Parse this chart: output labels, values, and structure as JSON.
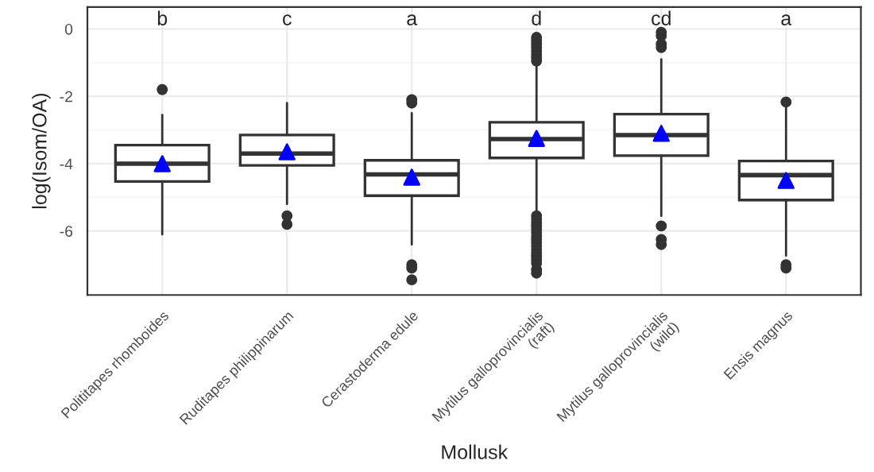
{
  "chart_data": {
    "type": "box",
    "xlabel": "Mollusk",
    "ylabel": "log(Isom/OA)",
    "categories": [
      "Polititapes rhomboides",
      "Ruditapes philippinarum",
      "Cerastoderma edule",
      "Mytilus galloprovincialis\n(raft)",
      "Mytilus galloprovincialis\n(wild)",
      "Ensis magnus"
    ],
    "boxes": [
      {
        "low": -6.1,
        "q1": -4.53,
        "median": -4.0,
        "q3": -3.45,
        "high": -2.55,
        "outliers": [
          -1.8
        ]
      },
      {
        "low": -5.2,
        "q1": -4.05,
        "median": -3.7,
        "q3": -3.15,
        "high": -2.2,
        "outliers": [
          -5.55,
          -5.8
        ]
      },
      {
        "low": -6.4,
        "q1": -4.95,
        "median": -4.32,
        "q3": -3.9,
        "high": -2.5,
        "outliers": [
          -2.1,
          -2.2,
          -7.0,
          -7.1,
          -7.45
        ]
      },
      {
        "low": -5.47,
        "q1": -3.83,
        "median": -3.27,
        "q3": -2.77,
        "high": -1.0,
        "outliers": [
          -0.25,
          -0.35,
          -0.45,
          -0.55,
          -0.65,
          -0.75,
          -0.85,
          -0.95,
          -5.55,
          -5.65,
          -5.75,
          -5.85,
          -5.95,
          -6.05,
          -6.15,
          -6.25,
          -6.35,
          -6.45,
          -6.55,
          -6.65,
          -6.75,
          -6.85,
          -6.95,
          -7.15,
          -7.25
        ]
      },
      {
        "low": -5.55,
        "q1": -3.76,
        "median": -3.15,
        "q3": -2.53,
        "high": -0.9,
        "outliers": [
          -0.1,
          -0.2,
          -0.45,
          -0.55,
          -5.85,
          -6.25,
          -6.4
        ]
      },
      {
        "low": -6.73,
        "q1": -5.08,
        "median": -4.34,
        "q3": -3.92,
        "high": -2.3,
        "outliers": [
          -2.17,
          -7.0,
          -7.1
        ]
      }
    ],
    "series": [
      {
        "type": "scatter",
        "color": "#0000ff",
        "marker": "triangle",
        "x": [
          "Polititapes rhomboides",
          "Ruditapes philippinarum",
          "Cerastoderma edule",
          "Mytilus galloprovincialis\n(raft)",
          "Mytilus galloprovincialis\n(wild)",
          "Ensis magnus"
        ],
        "values": [
          -4.0,
          -3.65,
          -4.4,
          -3.25,
          -3.1,
          -4.5
        ]
      }
    ],
    "annotations": [
      "b",
      "c",
      "a",
      "d",
      "cd",
      "a"
    ],
    "ylim": [
      -7.9,
      0.65
    ],
    "yticks": [
      {
        "value": -6,
        "label": "-6"
      },
      {
        "value": -4,
        "label": "-4"
      },
      {
        "value": -2,
        "label": "-2"
      },
      0
    ],
    "grid": true
  }
}
